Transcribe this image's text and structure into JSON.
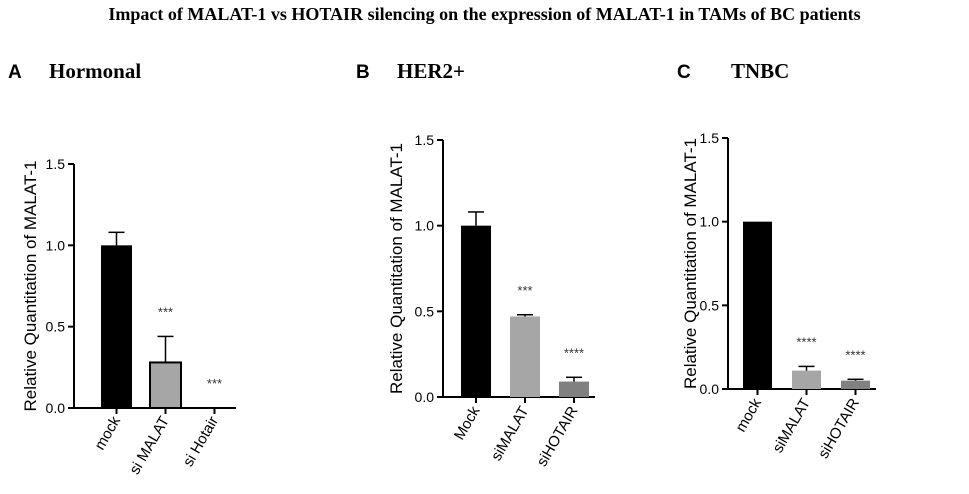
{
  "title": "Impact of MALAT-1 vs HOTAIR silencing on the expression of MALAT-1 in TAMs of BC patients",
  "chart_data": [
    {
      "type": "bar",
      "panel": "A",
      "title": "Hormonal",
      "ylabel": "Relative Quantitation of MALAT-1",
      "xlabel": "",
      "ylim": [
        0,
        1.5
      ],
      "yticks": [
        "0.0",
        "0.5",
        "1.0",
        "1.5"
      ],
      "categories": [
        "mock",
        "si MALAT",
        "si Hotair"
      ],
      "values": [
        1.0,
        0.28,
        0.0
      ],
      "errors": [
        0.08,
        0.16,
        0.0
      ],
      "significance": [
        "",
        "***",
        "***"
      ],
      "colors": [
        "#000000",
        "#a6a6a6",
        "#808080"
      ]
    },
    {
      "type": "bar",
      "panel": "B",
      "title": "HER2+",
      "ylabel": "Relative Quantitation of MALAT-1",
      "xlabel": "",
      "ylim": [
        0,
        1.5
      ],
      "yticks": [
        "0.0",
        "0.5",
        "1.0",
        "1.5"
      ],
      "categories": [
        "Mock",
        "siMALAT",
        "siHOTAIR"
      ],
      "values": [
        1.0,
        0.47,
        0.09
      ],
      "errors": [
        0.08,
        0.01,
        0.025
      ],
      "significance": [
        "",
        "***",
        "****"
      ],
      "colors": [
        "#000000",
        "#a6a6a6",
        "#808080"
      ]
    },
    {
      "type": "bar",
      "panel": "C",
      "title": "TNBC",
      "ylabel": "Relative Quantitation of MALAT-1",
      "xlabel": "",
      "ylim": [
        0,
        1.5
      ],
      "yticks": [
        "0.0",
        "0.5",
        "1.0",
        "1.5"
      ],
      "categories": [
        "mock",
        "siMALAT",
        "siHOTAIR"
      ],
      "values": [
        1.0,
        0.11,
        0.05
      ],
      "errors": [
        0.0,
        0.025,
        0.008
      ],
      "significance": [
        "",
        "****",
        "****"
      ],
      "colors": [
        "#000000",
        "#a6a6a6",
        "#808080"
      ]
    }
  ]
}
